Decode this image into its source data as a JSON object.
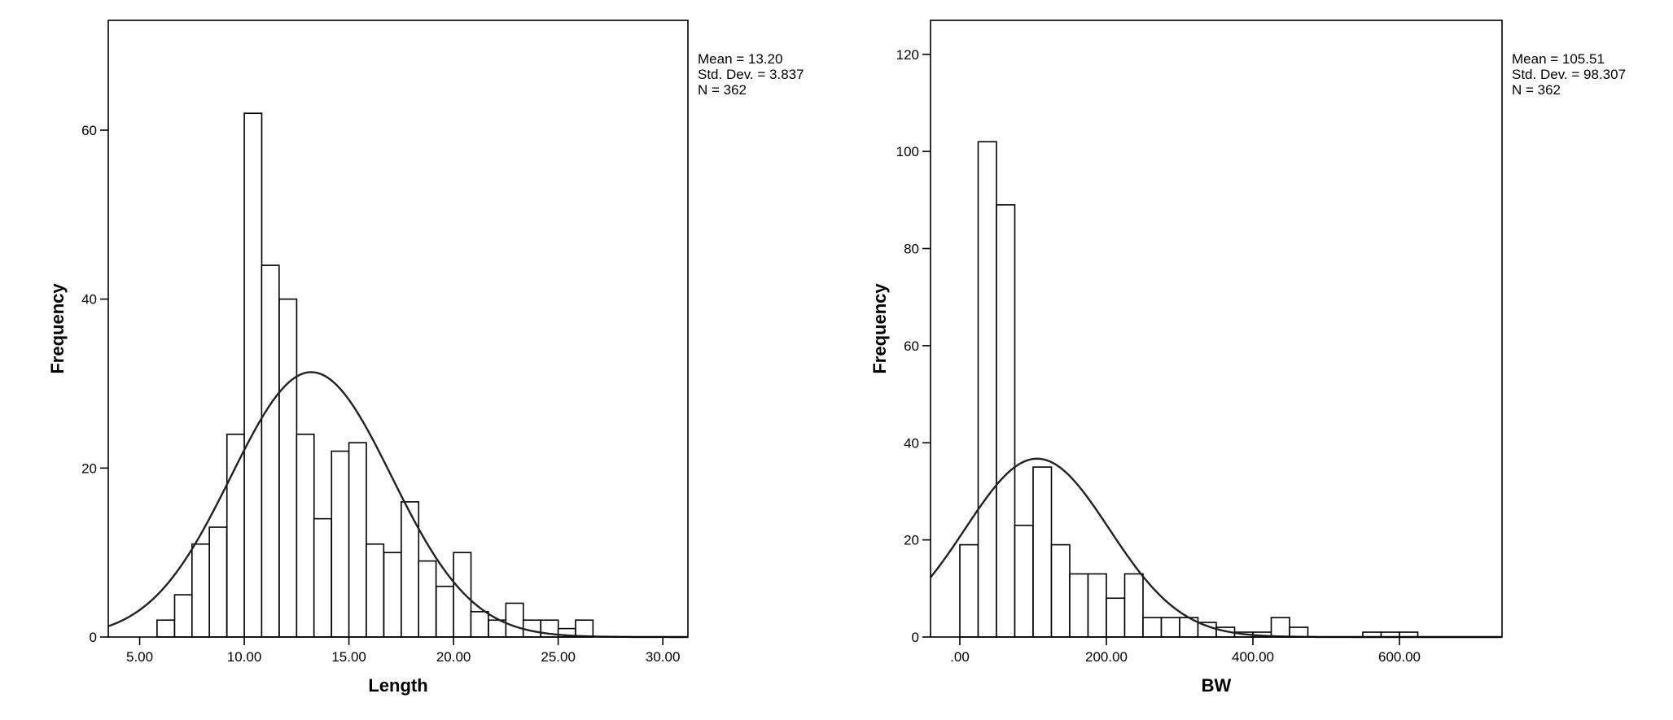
{
  "chart_data": [
    {
      "type": "bar",
      "subtype": "histogram",
      "xlabel": "Length",
      "ylabel": "Frequency",
      "xlim": [
        3.5,
        31.2
      ],
      "ylim": [
        0,
        73
      ],
      "x_ticks": [
        5,
        10,
        15,
        20,
        25,
        30
      ],
      "x_tick_labels": [
        "5.00",
        "10.00",
        "15.00",
        "20.00",
        "25.00",
        "30.00"
      ],
      "y_ticks": [
        0,
        20,
        40,
        60
      ],
      "y_tick_labels": [
        "0",
        "20",
        "40",
        "60"
      ],
      "bin_width": 0.833,
      "bins": [
        {
          "start": 5.83,
          "count": 2
        },
        {
          "start": 6.67,
          "count": 5
        },
        {
          "start": 7.5,
          "count": 11
        },
        {
          "start": 8.33,
          "count": 13
        },
        {
          "start": 9.17,
          "count": 24
        },
        {
          "start": 10.0,
          "count": 62
        },
        {
          "start": 10.83,
          "count": 44
        },
        {
          "start": 11.67,
          "count": 40
        },
        {
          "start": 12.5,
          "count": 24
        },
        {
          "start": 13.33,
          "count": 14
        },
        {
          "start": 14.17,
          "count": 22
        },
        {
          "start": 15.0,
          "count": 23
        },
        {
          "start": 15.83,
          "count": 11
        },
        {
          "start": 16.67,
          "count": 10
        },
        {
          "start": 17.5,
          "count": 16
        },
        {
          "start": 18.33,
          "count": 9
        },
        {
          "start": 19.17,
          "count": 6
        },
        {
          "start": 20.0,
          "count": 10
        },
        {
          "start": 20.83,
          "count": 3
        },
        {
          "start": 21.67,
          "count": 2
        },
        {
          "start": 22.5,
          "count": 4
        },
        {
          "start": 23.33,
          "count": 2
        },
        {
          "start": 24.17,
          "count": 2
        },
        {
          "start": 25.0,
          "count": 1
        },
        {
          "start": 25.83,
          "count": 2
        }
      ],
      "normal_curve": {
        "mean": 13.2,
        "sd": 3.837,
        "n": 362
      },
      "stats": {
        "mean": "Mean = 13.20",
        "sd": "Std. Dev. = 3.837",
        "n": "N = 362"
      }
    },
    {
      "type": "bar",
      "subtype": "histogram",
      "xlabel": "BW",
      "ylabel": "Frequency",
      "xlim": [
        -40,
        740
      ],
      "ylim": [
        0,
        127
      ],
      "x_ticks": [
        0,
        200,
        400,
        600
      ],
      "x_tick_labels": [
        ".00",
        "200.00",
        "400.00",
        "600.00"
      ],
      "y_ticks": [
        0,
        20,
        40,
        60,
        80,
        100,
        120
      ],
      "y_tick_labels": [
        "0",
        "20",
        "40",
        "60",
        "80",
        "100",
        "120"
      ],
      "bin_width": 25,
      "bins": [
        {
          "start": 0,
          "count": 19
        },
        {
          "start": 25,
          "count": 102
        },
        {
          "start": 50,
          "count": 89
        },
        {
          "start": 75,
          "count": 23
        },
        {
          "start": 100,
          "count": 35
        },
        {
          "start": 125,
          "count": 19
        },
        {
          "start": 150,
          "count": 13
        },
        {
          "start": 175,
          "count": 13
        },
        {
          "start": 200,
          "count": 8
        },
        {
          "start": 225,
          "count": 13
        },
        {
          "start": 250,
          "count": 4
        },
        {
          "start": 275,
          "count": 4
        },
        {
          "start": 300,
          "count": 4
        },
        {
          "start": 325,
          "count": 3
        },
        {
          "start": 350,
          "count": 2
        },
        {
          "start": 375,
          "count": 1
        },
        {
          "start": 400,
          "count": 1
        },
        {
          "start": 425,
          "count": 4
        },
        {
          "start": 450,
          "count": 2
        },
        {
          "start": 550,
          "count": 1
        },
        {
          "start": 575,
          "count": 1
        },
        {
          "start": 600,
          "count": 1
        }
      ],
      "normal_curve": {
        "mean": 105.51,
        "sd": 98.307,
        "n": 362
      },
      "stats": {
        "mean": "Mean = 105.51",
        "sd": "Std. Dev. = 98.307",
        "n": "N = 362"
      }
    }
  ],
  "colors": {
    "bar_fill": "#ffffff",
    "bar_stroke": "#000000",
    "curve": "#222222",
    "background": "#ffffff"
  }
}
